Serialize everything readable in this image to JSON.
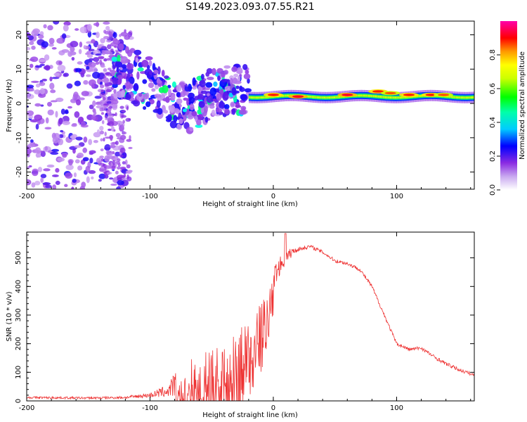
{
  "title": "S149.2023.093.07.55.R21",
  "colors": {
    "snr_line": "#ee3333",
    "frame": "#000000",
    "bg": "#ffffff"
  },
  "chart_data": [
    {
      "type": "heatmap",
      "title": "S149.2023.093.07.55.R21",
      "xlabel": "Height of straight line (km)",
      "ylabel": "Frequency (Hz)",
      "xlim": [
        -200,
        163
      ],
      "ylim": [
        -25,
        24
      ],
      "xticks": [
        -200,
        -100,
        0,
        100
      ],
      "xtick_labels": [
        "-200",
        "-100",
        "0",
        "100"
      ],
      "yticks": [
        -20,
        -10,
        0,
        10,
        20
      ],
      "ytick_labels": [
        "-20",
        "-10",
        "0",
        "10",
        "20"
      ],
      "colorbar": {
        "label": "Normalized spectral amplitude",
        "range": [
          0,
          1
        ],
        "ticks": [
          0.0,
          0.2,
          0.4,
          0.6,
          0.8
        ],
        "tick_labels": [
          "0.0",
          "0.2",
          "0.4",
          "0.6",
          "0.8"
        ],
        "colormap": [
          "#ffffff",
          "#8a2be2",
          "#0000ff",
          "#00ffff",
          "#00ff00",
          "#ffff00",
          "#ff8800",
          "#ff0000",
          "#ff00aa"
        ]
      },
      "regions": [
        {
          "x_range": [
            -200,
            -140
          ],
          "description": "scattered noise, low amplitude"
        },
        {
          "x_range": [
            -130,
            -20
          ],
          "center_freq_trend": [
            [
              -125,
              10
            ],
            [
              -90,
              3
            ],
            [
              -70,
              -2
            ],
            [
              -50,
              3
            ],
            [
              -30,
              4
            ]
          ],
          "description": "drifting blobs, medium amplitude"
        },
        {
          "x_range": [
            -20,
            163
          ],
          "center_freq": 2,
          "description": "narrow strong carrier line with peaks"
        }
      ],
      "carrier_peaks": [
        {
          "x": 0,
          "freq": 2.5,
          "amplitude": 0.85
        },
        {
          "x": 20,
          "freq": 2,
          "amplitude": 0.9
        },
        {
          "x": 60,
          "freq": 2.5,
          "amplitude": 0.9
        },
        {
          "x": 85,
          "freq": 3.5,
          "amplitude": 0.85
        },
        {
          "x": 95,
          "freq": 3,
          "amplitude": 0.8
        },
        {
          "x": 110,
          "freq": 2.5,
          "amplitude": 0.85
        },
        {
          "x": 128,
          "freq": 2.5,
          "amplitude": 0.85
        },
        {
          "x": 138,
          "freq": 2.5,
          "amplitude": 0.8
        }
      ]
    },
    {
      "type": "line",
      "xlabel": "Height of straight line (km)",
      "ylabel": "SNR (10 * v/v)",
      "xlim": [
        -200,
        163
      ],
      "ylim": [
        0,
        590
      ],
      "xticks": [
        -200,
        -100,
        0,
        100
      ],
      "xtick_labels": [
        "-200",
        "-100",
        "0",
        "100"
      ],
      "yticks": [
        0,
        100,
        200,
        300,
        400,
        500
      ],
      "ytick_labels": [
        "0",
        "100",
        "200",
        "300",
        "400",
        "500"
      ],
      "series": [
        {
          "name": "SNR",
          "envelope_x": [
            -200,
            -150,
            -120,
            -100,
            -85,
            -75,
            -70,
            -60,
            -50,
            -40,
            -30,
            -20,
            -10,
            -5,
            0,
            5,
            10,
            15,
            20,
            30,
            40,
            50,
            60,
            70,
            80,
            90,
            100,
            110,
            120,
            130,
            140,
            150,
            163
          ],
          "envelope_y": [
            12,
            10,
            12,
            20,
            35,
            80,
            140,
            160,
            180,
            200,
            240,
            300,
            340,
            380,
            430,
            470,
            500,
            520,
            530,
            540,
            520,
            490,
            480,
            460,
            400,
            300,
            200,
            180,
            185,
            155,
            130,
            110,
            90
          ],
          "noise_y": [
            5,
            5,
            6,
            10,
            30,
            80,
            130,
            140,
            150,
            160,
            170,
            140,
            110,
            90,
            60,
            40,
            30,
            20,
            10,
            8,
            8,
            8,
            8,
            8,
            8,
            8,
            8,
            8,
            8,
            8,
            8,
            8,
            8
          ]
        }
      ]
    }
  ]
}
